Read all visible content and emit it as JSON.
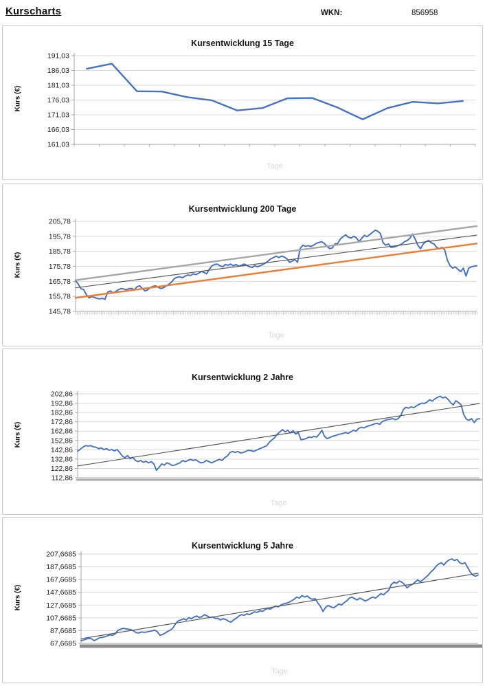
{
  "header": {
    "title": "Kurscharts",
    "wkn_label": "WKN:",
    "wkn_value": "856958"
  },
  "colors": {
    "series_blue": "#4472C4",
    "trend_orange": "#ED7D31",
    "trend_gray_thick": "#A6A6A6",
    "trend_gray_thin": "#595959",
    "gridline": "#D9D9D9",
    "axis": "#A6A6A6"
  },
  "chart_data": [
    {
      "type": "line",
      "title": "Kursentwicklung 15 Tage",
      "xlabel": "Tage",
      "ylabel": "Kurs (€)",
      "y_tick_labels": [
        "191,03",
        "186,03",
        "181,03",
        "176,03",
        "171,03",
        "166,03",
        "161,03"
      ],
      "ylim": [
        161.03,
        191.03
      ],
      "grid": true,
      "legend": "none",
      "x_axis": {
        "style": "ticks",
        "count": 16
      },
      "series": [
        {
          "name": "Kurs",
          "color": "#4472C4",
          "width": 2.4,
          "point_align": "center",
          "values": [
            186.6,
            188.3,
            179.0,
            178.9,
            177.0,
            175.9,
            172.5,
            173.3,
            176.6,
            176.7,
            173.5,
            169.5,
            173.3,
            175.4,
            174.9,
            175.7
          ]
        }
      ],
      "trend_lines": []
    },
    {
      "type": "line",
      "title": "Kursentwicklung 200 Tage",
      "xlabel": "Tage",
      "ylabel": "Kurs (€)",
      "y_tick_labels": [
        "205,78",
        "195,78",
        "185,78",
        "175,78",
        "165,78",
        "155,78",
        "145,78"
      ],
      "ylim": [
        145.78,
        205.78
      ],
      "grid": true,
      "legend": "none",
      "x_axis": {
        "style": "comb"
      },
      "series": [
        {
          "name": "Kurs",
          "color": "#4472C4",
          "width": 2.0,
          "point_align": "edge",
          "values": [
            166.3,
            164.0,
            160.9,
            160.4,
            157.0,
            154.8,
            155.6,
            155.1,
            154.5,
            154.1,
            154.5,
            153.8,
            158.6,
            159.4,
            158.2,
            159.0,
            160.2,
            161.0,
            160.7,
            160.2,
            161.0,
            161.0,
            160.2,
            162.2,
            162.8,
            161.0,
            159.4,
            160.2,
            161.7,
            162.5,
            162.8,
            161.7,
            161.0,
            161.7,
            162.8,
            164.0,
            165.5,
            167.8,
            168.5,
            168.8,
            168.2,
            169.3,
            170.0,
            169.7,
            170.8,
            170.3,
            171.2,
            172.3,
            171.8,
            170.8,
            173.9,
            176.2,
            177.0,
            177.3,
            176.2,
            175.5,
            177.0,
            176.5,
            177.3,
            176.2,
            177.0,
            175.9,
            176.5,
            177.3,
            176.5,
            175.5,
            175.0,
            176.2,
            175.5,
            176.2,
            177.0,
            178.0,
            179.3,
            180.8,
            181.6,
            182.6,
            181.6,
            182.6,
            182.0,
            180.8,
            178.5,
            179.3,
            180.3,
            178.5,
            187.7,
            189.9,
            189.1,
            189.6,
            189.1,
            189.9,
            191.1,
            191.7,
            192.2,
            191.1,
            189.1,
            187.6,
            188.0,
            190.8,
            191.0,
            194.0,
            195.5,
            196.8,
            195.2,
            194.6,
            195.8,
            194.8,
            192.3,
            194.5,
            196.5,
            195.5,
            197.0,
            198.4,
            199.9,
            199.2,
            197.6,
            191.5,
            189.9,
            190.7,
            188.4,
            188.7,
            189.2,
            189.9,
            190.7,
            192.2,
            193.0,
            194.5,
            197.3,
            193.8,
            189.9,
            187.6,
            190.7,
            192.2,
            193.0,
            191.5,
            190.7,
            188.4,
            187.6,
            188.4,
            186.8,
            180.0,
            176.2,
            174.6,
            175.4,
            173.8,
            172.3,
            174.6,
            169.3,
            174.6,
            175.4,
            175.9,
            176.2
          ]
        }
      ],
      "trend_lines": [
        {
          "name": "oberer Trendkanal",
          "color": "#A6A6A6",
          "width": 2.4,
          "start": 166.6,
          "end": 202.6
        },
        {
          "name": "linearer Trend",
          "color": "#595959",
          "width": 1.2,
          "start": 161.5,
          "end": 196.6
        },
        {
          "name": "unterer Trendkanal",
          "color": "#ED7D31",
          "width": 2.4,
          "start": 154.8,
          "end": 191.0
        }
      ]
    },
    {
      "type": "line",
      "title": "Kursentwicklung 2 Jahre",
      "xlabel": "Tage",
      "ylabel": "Kurs (€)",
      "y_tick_labels": [
        "202,86",
        "192,86",
        "182,86",
        "172,86",
        "162,86",
        "152,86",
        "142,86",
        "132,86",
        "122,86",
        "112,86"
      ],
      "ylim": [
        112.86,
        202.86
      ],
      "grid": true,
      "legend": "none",
      "x_axis": {
        "style": "band",
        "height": 3,
        "color": "#ABABAB"
      },
      "series": [
        {
          "name": "Kurs",
          "color": "#4472C4",
          "width": 1.9,
          "point_align": "edge",
          "values": [
            141.3,
            143.5,
            145.6,
            147.3,
            146.8,
            147.3,
            146.0,
            145.6,
            144.1,
            144.8,
            143.1,
            144.1,
            142.4,
            143.1,
            141.6,
            143.1,
            139.9,
            136.2,
            134.3,
            136.7,
            133.3,
            134.8,
            131.4,
            130.1,
            131.4,
            129.4,
            130.6,
            128.9,
            130.1,
            127.7,
            120.8,
            124.0,
            127.7,
            126.5,
            128.9,
            127.7,
            126.0,
            126.5,
            127.7,
            128.9,
            131.4,
            130.1,
            131.4,
            132.6,
            131.4,
            132.1,
            130.1,
            128.9,
            129.4,
            131.4,
            130.1,
            128.9,
            130.1,
            131.4,
            132.6,
            131.4,
            134.3,
            136.2,
            139.9,
            141.1,
            139.9,
            141.1,
            139.4,
            139.9,
            141.1,
            142.4,
            141.9,
            141.1,
            142.4,
            143.6,
            144.8,
            146.0,
            147.3,
            151.0,
            153.5,
            156.0,
            159.6,
            162.1,
            164.5,
            162.1,
            163.8,
            160.9,
            163.4,
            159.7,
            161.4,
            153.6,
            154.1,
            154.8,
            156.5,
            156.0,
            157.3,
            156.5,
            159.7,
            163.8,
            157.3,
            154.8,
            156.0,
            157.3,
            158.0,
            159.0,
            159.7,
            160.4,
            161.4,
            160.4,
            162.1,
            163.8,
            162.8,
            165.8,
            167.0,
            166.3,
            167.8,
            168.7,
            169.5,
            170.7,
            171.2,
            170.2,
            173.2,
            174.4,
            175.2,
            175.7,
            176.2,
            175.2,
            176.2,
            179.4,
            186.0,
            188.5,
            187.5,
            189.0,
            188.0,
            190.0,
            191.5,
            193.0,
            192.5,
            194.0,
            196.5,
            195.0,
            197.5,
            199.0,
            200.4,
            198.5,
            199.5,
            197.0,
            193.5,
            191.0,
            195.5,
            193.5,
            191.0,
            180.5,
            175.7,
            174.4,
            176.2,
            172.0,
            175.7,
            176.2
          ]
        }
      ],
      "trend_lines": [
        {
          "name": "linearer Trend",
          "color": "#595959",
          "width": 1.2,
          "start": 125.5,
          "end": 192.5
        }
      ]
    },
    {
      "type": "line",
      "title": "Kursentwicklung 5 Jahre",
      "xlabel": "Tage",
      "ylabel": "Kurs (€)",
      "y_tick_labels": [
        "207,6685",
        "187,6685",
        "167,6685",
        "147,6685",
        "127,6685",
        "107,6685",
        "87,6685",
        "67,6685"
      ],
      "ylim": [
        67.6685,
        207.6685
      ],
      "grid": true,
      "legend": "none",
      "x_axis": {
        "style": "band",
        "height": 5,
        "color": "#8C8C8C"
      },
      "series": [
        {
          "name": "Kurs",
          "color": "#4472C4",
          "width": 1.9,
          "point_align": "edge",
          "values": [
            71.9,
            73.0,
            74.5,
            75.5,
            74.8,
            72.0,
            74.0,
            76.5,
            77.0,
            78.0,
            79.5,
            81.0,
            80.3,
            82.5,
            88.0,
            90.0,
            91.2,
            90.5,
            90.0,
            89.0,
            87.0,
            84.5,
            84.0,
            85.5,
            85.0,
            85.5,
            86.5,
            87.3,
            88.4,
            86.0,
            80.3,
            81.7,
            84.0,
            86.5,
            88.4,
            92.0,
            99.0,
            103.0,
            104.4,
            106.2,
            104.4,
            108.0,
            106.2,
            109.1,
            110.5,
            108.0,
            109.8,
            112.7,
            110.5,
            108.0,
            109.1,
            106.9,
            106.9,
            104.4,
            106.2,
            105.1,
            102.6,
            100.8,
            104.4,
            106.9,
            110.5,
            112.7,
            111.6,
            114.1,
            112.7,
            115.2,
            117.0,
            116.3,
            118.8,
            117.7,
            120.6,
            122.4,
            121.3,
            124.2,
            126.0,
            124.9,
            127.7,
            129.5,
            130.6,
            132.0,
            134.2,
            136.7,
            140.3,
            138.5,
            142.7,
            140.3,
            142.0,
            138.5,
            136.7,
            137.8,
            131.3,
            125.9,
            117.6,
            124.1,
            127.0,
            124.8,
            123.4,
            125.9,
            129.5,
            127.7,
            131.3,
            134.1,
            138.5,
            140.3,
            137.8,
            135.6,
            138.5,
            136.7,
            134.1,
            135.6,
            138.5,
            140.3,
            138.5,
            142.0,
            145.6,
            143.8,
            147.4,
            151.0,
            160.0,
            163.6,
            161.8,
            165.4,
            163.6,
            160.0,
            154.6,
            158.2,
            160.0,
            163.6,
            167.2,
            164.3,
            167.2,
            170.8,
            174.4,
            179.5,
            183.0,
            188.5,
            192.0,
            194.0,
            190.4,
            195.6,
            198.5,
            200.0,
            197.4,
            199.2,
            194.0,
            192.3,
            194.0,
            186.8,
            179.5,
            174.5,
            172.9,
            174.8
          ]
        }
      ],
      "trend_lines": [
        {
          "name": "linearer Trend",
          "color": "#595959",
          "width": 1.2,
          "start": 75.0,
          "end": 177.5
        }
      ]
    }
  ]
}
